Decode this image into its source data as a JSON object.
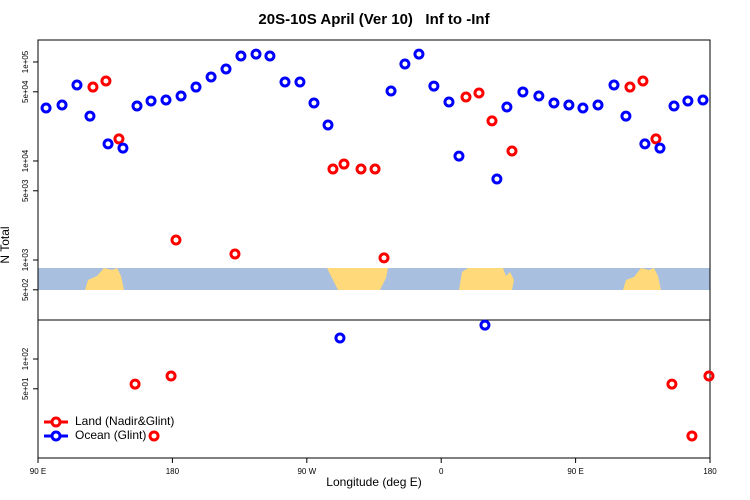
{
  "chart_data": {
    "type": "scatter",
    "title": "20S-10S April (Ver 10)   Inf to -Inf",
    "x_label": "Longitude (deg E)",
    "y_label": "N Total",
    "y_scale": "log",
    "legend_position": "bottom-left",
    "xlim": [
      90,
      540
    ],
    "ylim": [
      10,
      166700
    ],
    "xticks": [
      {
        "value": 90,
        "label": "90 E"
      },
      {
        "value": 180,
        "label": "180"
      },
      {
        "value": 270,
        "label": "90 W"
      },
      {
        "value": 360,
        "label": "0"
      },
      {
        "value": 450,
        "label": "90 E"
      },
      {
        "value": 540,
        "label": "180"
      }
    ],
    "yticks": [
      {
        "value": 100000,
        "label": "1e+05"
      },
      {
        "value": 50000,
        "label": "5e+04"
      },
      {
        "value": 10000,
        "label": "1e+04"
      },
      {
        "value": 5000,
        "label": "5e+03"
      },
      {
        "value": 1000,
        "label": "1e+03"
      },
      {
        "value": 500,
        "label": "5e+02"
      },
      {
        "value": 100,
        "label": "1e+02"
      },
      {
        "value": 50,
        "label": "5e+01"
      }
    ],
    "series": [
      {
        "name": "Land (Nadir&Glint)",
        "color": "#ff0000",
        "x": [
          126.8,
          135.5,
          144.2,
          155.0,
          179.1,
          182.4,
          221.9,
          287.5,
          294.9,
          306.3,
          315.7,
          321.7,
          167.7,
          376.6,
          385.3,
          394.0,
          407.4,
          486.4,
          495.1,
          503.8,
          514.5,
          527.9,
          539.3
        ],
        "values": [
          55800,
          64300,
          16700,
          55.8,
          67.3,
          1590,
          1150,
          8300,
          9310,
          8300,
          8300,
          1050,
          16.7,
          44300,
          48600,
          25400,
          12600,
          55800,
          64300,
          16700,
          55.8,
          16.7,
          67.3
        ]
      },
      {
        "name": "Ocean (Glint)",
        "color": "#0000ff",
        "x": [
          95.4,
          106.1,
          116.1,
          124.8,
          136.9,
          146.9,
          156.3,
          165.7,
          175.7,
          185.8,
          195.8,
          205.9,
          215.9,
          225.9,
          236.0,
          245.3,
          255.4,
          265.4,
          274.8,
          284.2,
          292.2,
          326.4,
          335.7,
          345.1,
          355.1,
          365.2,
          371.9,
          389.3,
          397.3,
          404.0,
          414.7,
          425.4,
          435.5,
          445.5,
          454.9,
          465.0,
          475.7,
          483.7,
          496.4,
          506.5,
          515.9,
          525.2,
          535.3
        ],
        "values": [
          34300,
          36800,
          58500,
          28400,
          14900,
          13500,
          35900,
          40400,
          41300,
          45300,
          55800,
          70500,
          84900,
          115000,
          120000,
          115000,
          62800,
          62800,
          38500,
          23100,
          163,
          50900,
          95500,
          120000,
          57100,
          39400,
          11200,
          220,
          6580,
          35100,
          49800,
          45300,
          38500,
          36800,
          34300,
          36800,
          58500,
          28400,
          14900,
          13500,
          35900,
          40400,
          41300
        ]
      }
    ]
  }
}
